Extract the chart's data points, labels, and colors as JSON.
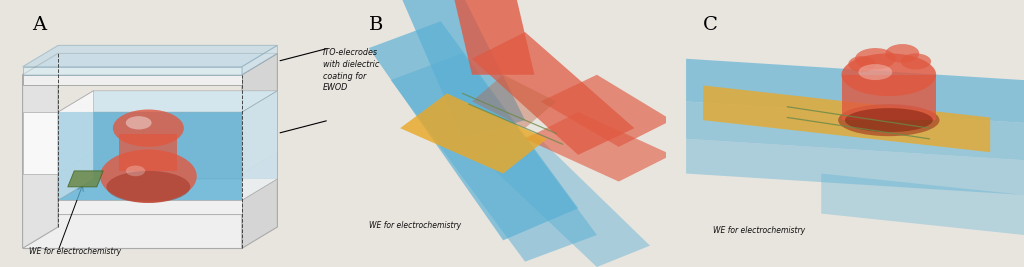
{
  "bg_color": "#e8e5df",
  "label_A": "A",
  "label_B": "B",
  "label_C": "C",
  "text_ITO": "ITO-elecrodes\nwith dielectric\ncoating for\nEWOD",
  "text_WE_A": "WE for electrochemistry",
  "text_WE_B": "WE for electrochemistry",
  "text_WE_C": "WE for electrochemistry",
  "blue": "#5aafd4",
  "red": "#e05840",
  "orange": "#e8a828",
  "green": "#6a8848",
  "glass": "#b8d8e8",
  "box_gray1": "#efefef",
  "box_gray2": "#e2e2e2",
  "box_gray3": "#d5d5d5",
  "box_edge": "#aaaaaa",
  "white": "#ffffff"
}
